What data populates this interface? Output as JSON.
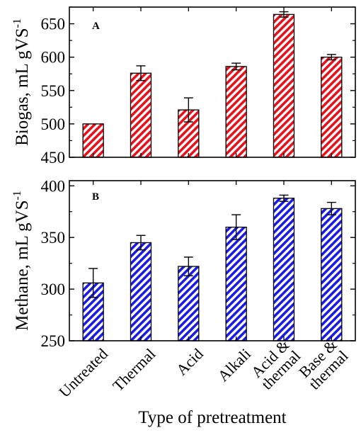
{
  "chart_data": [
    {
      "type": "bar",
      "panel_label": "A",
      "categories": [
        "Untreated",
        "Thermal",
        "Acid",
        "Alkali",
        "Acid & thermal",
        "Base & thermal"
      ],
      "values": [
        500,
        576,
        521,
        586,
        664,
        600
      ],
      "errors": [
        0,
        11,
        18,
        5,
        4,
        4
      ],
      "ylabel": "Biogas, mL gVS",
      "ylabel_sup": "-1",
      "ylim": [
        450,
        675
      ],
      "yticks": [
        "450",
        "500",
        "550",
        "600",
        "650"
      ],
      "grid": false,
      "bar_color": "#e8101a",
      "hatch": "diagonal"
    },
    {
      "type": "bar",
      "panel_label": "B",
      "categories": [
        "Untreated",
        "Thermal",
        "Acid",
        "Alkali",
        "Acid & thermal",
        "Base & thermal"
      ],
      "values": [
        306,
        345,
        322,
        360,
        388,
        378
      ],
      "errors": [
        14,
        7,
        9,
        12,
        3,
        6
      ],
      "ylabel": "Methane, mL gVS",
      "ylabel_sup": "-1",
      "ylim": [
        250,
        405
      ],
      "yticks": [
        "250",
        "300",
        "350",
        "400"
      ],
      "grid": false,
      "bar_color": "#1a1ae6",
      "hatch": "diagonal"
    }
  ],
  "x_tick_labels": [
    [
      "Untreated"
    ],
    [
      "Thermal"
    ],
    [
      "Acid"
    ],
    [
      "Alkali"
    ],
    [
      "Acid &",
      "thermal"
    ],
    [
      "Base &",
      "thermal"
    ]
  ],
  "xlabel": "Type of pretreatment"
}
